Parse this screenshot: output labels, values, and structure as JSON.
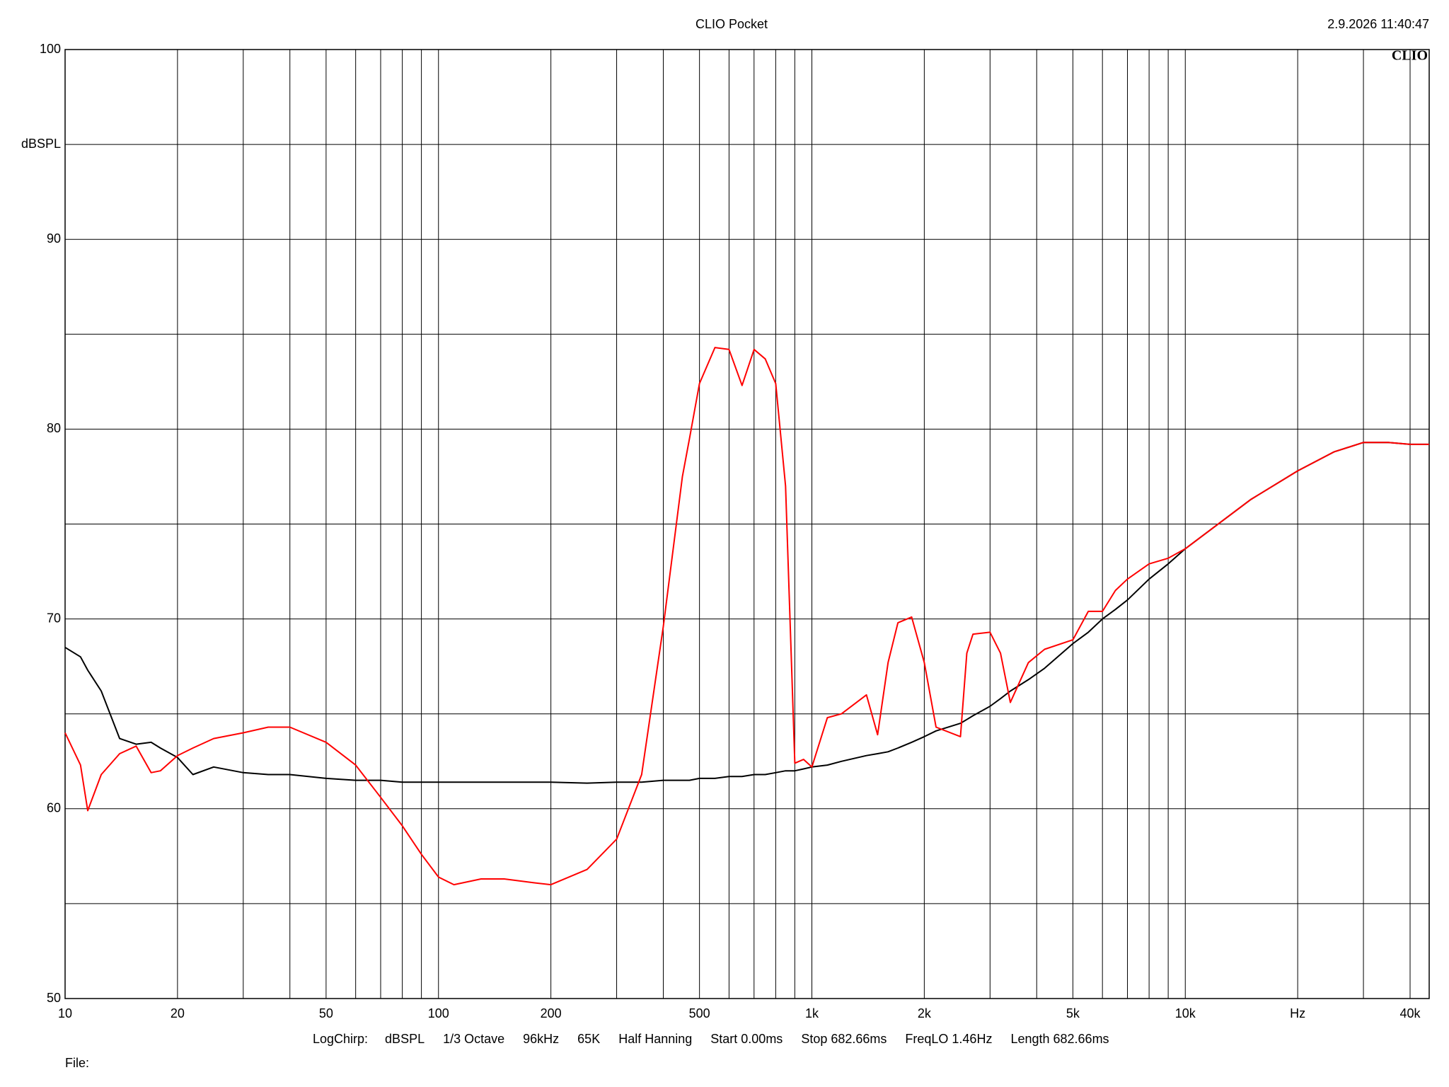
{
  "chart_data": {
    "type": "line",
    "title": "CLIO Pocket",
    "timestamp": "2.9.2026 11:40:47",
    "logo": "CLIO",
    "y_label": "dBSPL",
    "footer": [
      "LogChirp:",
      "dBSPL",
      "1/3 Octave",
      "96kHz",
      "65K",
      "Half Hanning",
      "Start 0.00ms",
      "Stop 682.66ms",
      "FreqLO 1.46Hz",
      "Length 682.66ms"
    ],
    "file_label": "File:",
    "x_log": true,
    "grid": true,
    "xlim": [
      10,
      45000
    ],
    "xticks": [
      10,
      20,
      50,
      100,
      200,
      500,
      {
        "value": 1000,
        "label": "1k"
      },
      {
        "value": 2000,
        "label": "2k"
      },
      {
        "value": 5000,
        "label": "5k"
      },
      {
        "value": 10000,
        "label": "10k"
      },
      {
        "value": 20000,
        "label": "Hz"
      },
      {
        "value": 40000,
        "label": "40k"
      }
    ],
    "xminor": [
      30,
      40,
      60,
      70,
      80,
      90,
      300,
      400,
      600,
      700,
      800,
      900,
      3000,
      4000,
      6000,
      7000,
      8000,
      9000,
      30000
    ],
    "ylim": [
      50,
      100
    ],
    "yticks": [
      50,
      60,
      70,
      80,
      90,
      100
    ],
    "yminor": [
      55,
      65,
      75,
      85,
      95
    ],
    "x": [
      10,
      11,
      11.5,
      12.5,
      14,
      15.5,
      17,
      18,
      20,
      22,
      25,
      30,
      35,
      40,
      50,
      60,
      70,
      80,
      90,
      100,
      110,
      130,
      150,
      180,
      200,
      250,
      300,
      350,
      400,
      450,
      470,
      500,
      550,
      600,
      650,
      700,
      750,
      800,
      850,
      900,
      950,
      1000,
      1100,
      1200,
      1400,
      1500,
      1600,
      1700,
      1850,
      2000,
      2150,
      2500,
      2600,
      2700,
      3000,
      3200,
      3400,
      3800,
      4200,
      5000,
      5500,
      6000,
      6500,
      7000,
      8000,
      9000,
      10000,
      15000,
      20000,
      25000,
      30000,
      35000,
      40000,
      45000
    ],
    "series": [
      {
        "color": "#000000",
        "values": [
          68.5,
          68.0,
          67.3,
          66.2,
          63.7,
          63.4,
          63.5,
          63.2,
          62.7,
          61.8,
          62.2,
          61.9,
          61.8,
          61.8,
          61.6,
          61.5,
          61.5,
          61.4,
          61.4,
          61.4,
          61.4,
          61.4,
          61.4,
          61.4,
          61.4,
          61.35,
          61.4,
          61.4,
          61.5,
          61.5,
          61.5,
          61.6,
          61.6,
          61.7,
          61.7,
          61.8,
          61.8,
          61.9,
          62.0,
          62.0,
          62.1,
          62.2,
          62.3,
          62.5,
          62.8,
          62.9,
          63.0,
          63.2,
          63.5,
          63.8,
          64.1,
          64.5,
          64.7,
          64.9,
          65.4,
          65.8,
          66.2,
          66.8,
          67.4,
          68.7,
          69.3,
          70.0,
          70.5,
          71.0,
          72.1,
          72.9,
          73.7,
          76.3,
          77.8,
          78.8,
          79.3,
          79.3,
          79.2,
          79.2
        ]
      },
      {
        "color": "#ff0000",
        "values": [
          64.0,
          62.3,
          59.9,
          61.8,
          62.9,
          63.3,
          61.9,
          62.0,
          62.8,
          63.2,
          63.7,
          64.0,
          64.3,
          64.3,
          63.5,
          62.3,
          60.6,
          59.1,
          57.6,
          56.4,
          56.0,
          56.3,
          56.3,
          56.1,
          56.0,
          56.8,
          58.4,
          61.8,
          69.6,
          77.5,
          79.5,
          82.4,
          84.3,
          84.2,
          82.3,
          84.2,
          83.7,
          82.4,
          77.0,
          62.4,
          62.6,
          62.2,
          64.8,
          65.0,
          66.0,
          63.9,
          67.7,
          69.8,
          70.1,
          67.7,
          64.3,
          63.8,
          68.2,
          69.2,
          69.3,
          68.2,
          65.6,
          67.7,
          68.4,
          68.9,
          70.4,
          70.4,
          71.5,
          72.1,
          72.9,
          73.2,
          73.7,
          76.3,
          77.8,
          78.8,
          79.3,
          79.3,
          79.2,
          79.2
        ]
      }
    ]
  }
}
